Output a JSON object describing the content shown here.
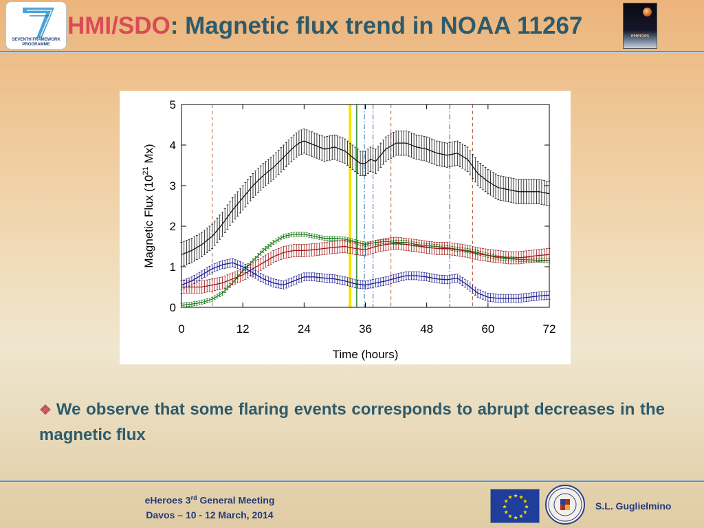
{
  "header": {
    "title_prefix": "HMI/SDO",
    "title_rest": ": Magnetic flux trend in NOAA 11267",
    "fp7_logo": {
      "icon": "seven-framework-logo-icon",
      "line1": "SEVENTH FRAMEWORK",
      "line2": "PROGRAMME"
    },
    "eheroes_logo": {
      "icon": "eheroes-logo-icon",
      "label": "eHeroes"
    }
  },
  "chart_data": {
    "type": "line",
    "title": "",
    "xlabel": "Time (hours)",
    "ylabel_pre": "Magnetic Flux (10",
    "ylabel_sup": "21",
    "ylabel_post": " Mx)",
    "xlim": [
      0,
      72
    ],
    "ylim": [
      0,
      5
    ],
    "xticks": [
      0,
      12,
      24,
      36,
      48,
      60,
      72
    ],
    "yticks": [
      0,
      1,
      2,
      3,
      4,
      5
    ],
    "grid": false,
    "error_bars": true,
    "series": [
      {
        "color": "#111111",
        "x": [
          0,
          2,
          4,
          6,
          8,
          10,
          12,
          14,
          16,
          18,
          20,
          22,
          23,
          24,
          25,
          26,
          28,
          30,
          32,
          34,
          35,
          36,
          37,
          38,
          40,
          42,
          44,
          46,
          48,
          50,
          52,
          54,
          56,
          58,
          60,
          62,
          64,
          66,
          68,
          70,
          72
        ],
        "y": [
          1.3,
          1.4,
          1.55,
          1.75,
          2.05,
          2.4,
          2.7,
          3.0,
          3.25,
          3.45,
          3.7,
          3.95,
          4.05,
          4.1,
          4.05,
          4.0,
          3.9,
          3.95,
          3.85,
          3.65,
          3.55,
          3.55,
          3.65,
          3.6,
          3.9,
          4.05,
          4.05,
          3.95,
          3.9,
          3.8,
          3.75,
          3.8,
          3.65,
          3.3,
          3.1,
          2.95,
          2.9,
          2.85,
          2.85,
          2.85,
          2.8
        ],
        "err": 0.3
      },
      {
        "color": "#1a7a1a",
        "x": [
          0,
          2,
          4,
          6,
          8,
          10,
          12,
          14,
          16,
          18,
          20,
          22,
          24,
          26,
          28,
          30,
          32,
          34,
          36,
          38,
          40,
          42,
          44,
          46,
          48,
          50,
          52,
          54,
          56,
          58,
          60,
          62,
          64,
          66,
          68,
          70,
          72
        ],
        "y": [
          0.05,
          0.08,
          0.12,
          0.2,
          0.35,
          0.6,
          0.9,
          1.15,
          1.4,
          1.6,
          1.75,
          1.8,
          1.8,
          1.75,
          1.7,
          1.7,
          1.68,
          1.62,
          1.55,
          1.6,
          1.62,
          1.6,
          1.6,
          1.55,
          1.52,
          1.5,
          1.47,
          1.43,
          1.4,
          1.35,
          1.28,
          1.22,
          1.2,
          1.18,
          1.17,
          1.16,
          1.15
        ],
        "err": 0.05
      },
      {
        "color": "#a01616",
        "x": [
          0,
          2,
          4,
          6,
          8,
          10,
          12,
          14,
          16,
          18,
          20,
          22,
          24,
          26,
          28,
          30,
          32,
          34,
          36,
          38,
          40,
          42,
          44,
          46,
          48,
          50,
          52,
          54,
          56,
          58,
          60,
          62,
          64,
          66,
          68,
          70,
          72
        ],
        "y": [
          0.5,
          0.5,
          0.5,
          0.55,
          0.6,
          0.7,
          0.8,
          0.95,
          1.1,
          1.25,
          1.35,
          1.4,
          1.4,
          1.42,
          1.45,
          1.48,
          1.5,
          1.45,
          1.42,
          1.5,
          1.55,
          1.58,
          1.55,
          1.52,
          1.48,
          1.45,
          1.45,
          1.42,
          1.38,
          1.32,
          1.28,
          1.25,
          1.22,
          1.22,
          1.25,
          1.28,
          1.3
        ],
        "err": 0.15
      },
      {
        "color": "#1a1a90",
        "x": [
          0,
          2,
          4,
          6,
          8,
          10,
          12,
          14,
          16,
          18,
          20,
          22,
          24,
          26,
          28,
          30,
          32,
          34,
          36,
          38,
          40,
          42,
          44,
          46,
          48,
          50,
          52,
          54,
          56,
          58,
          60,
          62,
          64,
          66,
          68,
          70,
          72
        ],
        "y": [
          0.55,
          0.65,
          0.8,
          0.95,
          1.05,
          1.1,
          1.0,
          0.85,
          0.7,
          0.6,
          0.55,
          0.65,
          0.75,
          0.75,
          0.72,
          0.7,
          0.65,
          0.58,
          0.55,
          0.6,
          0.65,
          0.72,
          0.78,
          0.78,
          0.75,
          0.7,
          0.68,
          0.72,
          0.55,
          0.35,
          0.25,
          0.22,
          0.22,
          0.22,
          0.25,
          0.28,
          0.3
        ],
        "err": 0.1
      }
    ],
    "event_lines": [
      {
        "x": 6,
        "color": "#b05a30",
        "style": "dashed"
      },
      {
        "x": 33,
        "color": "#f5e400",
        "style": "solid",
        "width": 4
      },
      {
        "x": 34.3,
        "color": "#2a8a2a",
        "style": "solid",
        "width": 1.5
      },
      {
        "x": 35.8,
        "color": "#2a60a8",
        "style": "dashdot"
      },
      {
        "x": 37.5,
        "color": "#2a60a8",
        "style": "dashdot"
      },
      {
        "x": 41,
        "color": "#b05a30",
        "style": "dashed"
      },
      {
        "x": 52.5,
        "color": "#2a60a8",
        "style": "dashdot"
      },
      {
        "x": 57,
        "color": "#b05a30",
        "style": "dashed"
      }
    ]
  },
  "bullet": {
    "marker": "❖",
    "text": "We observe that some flaring events corresponds to abrupt decreases in the magnetic flux"
  },
  "footer": {
    "line1_pre": "eHeroes 3",
    "line1_sup": "rd",
    "line1_post": " General Meeting",
    "line2": "Davos – 10 - 12 March, 2014",
    "eu_flag_icon": "eu-flag-icon",
    "seal_icon": "university-seal-icon",
    "author": "S.L. Guglielmino"
  }
}
